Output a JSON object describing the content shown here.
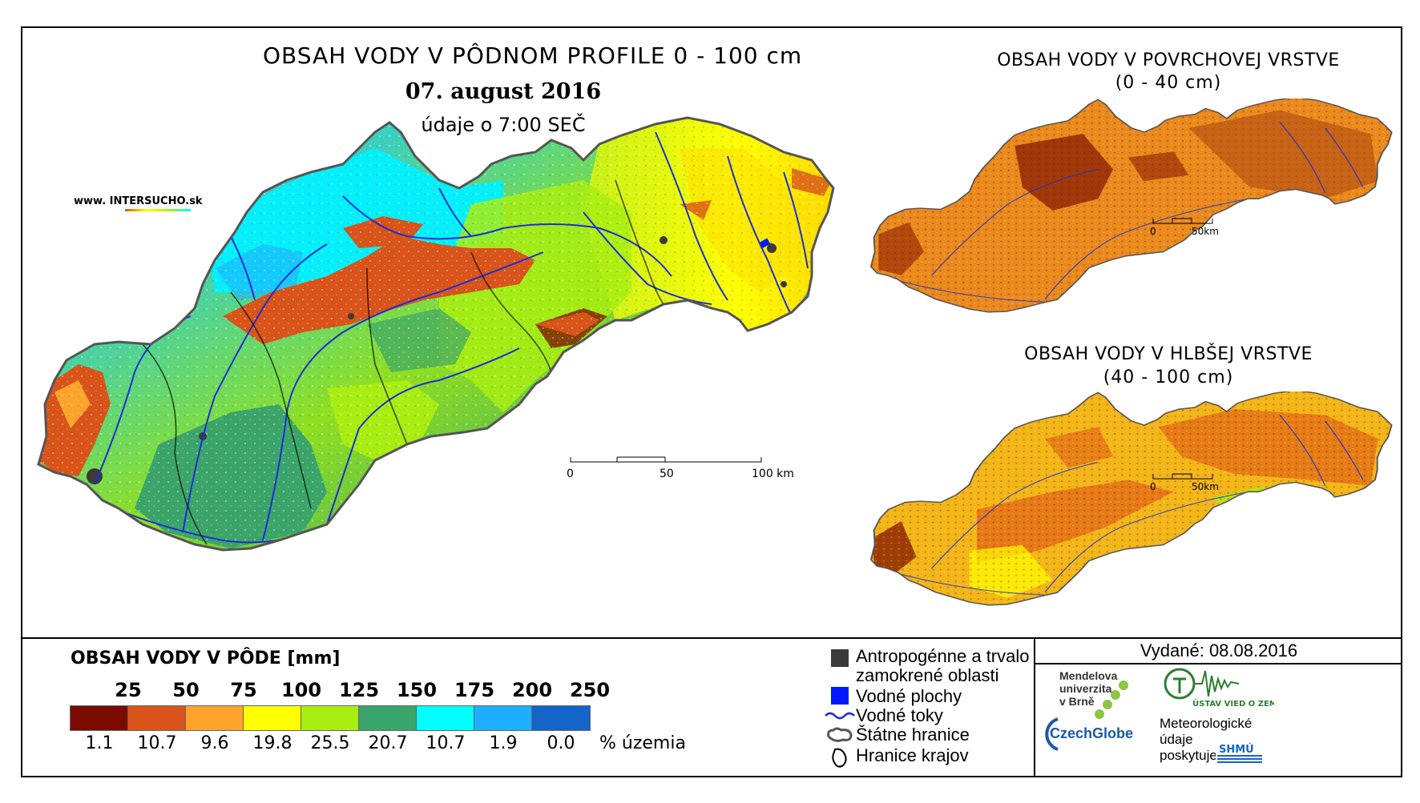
{
  "main_map": {
    "title": "OBSAH VODY V PÔDNOM PROFILE 0 - 100 cm",
    "date": "07. august 2016",
    "time": "údaje o 7:00 SEČ",
    "website": {
      "prefix": "www. INTER",
      "brand": "SUCHO",
      "suffix": ".sk"
    },
    "scale_bar": {
      "labels": [
        "0",
        "50",
        "100 km"
      ]
    }
  },
  "surface_map": {
    "title_line1": "OBSAH VODY V POVRCHOVEJ VRSTVE",
    "title_line2": "(0 - 40 cm)",
    "scale_bar": {
      "labels": [
        "0",
        "50km"
      ]
    }
  },
  "deep_map": {
    "title_line1": "OBSAH VODY V HLBŠEJ VRSTVE",
    "title_line2": "(40 - 100 cm)",
    "scale_bar": {
      "labels": [
        "0",
        "50km"
      ]
    }
  },
  "legend": {
    "title": "OBSAH VODY V PÔDE [mm]",
    "class_bounds": [
      "25",
      "50",
      "75",
      "100",
      "125",
      "150",
      "175",
      "200",
      "250"
    ],
    "class_colors": [
      "#7a0a00",
      "#d9531a",
      "#ffa42a",
      "#ffff00",
      "#a8ee12",
      "#3aa56a",
      "#00ffff",
      "#1eb0ff",
      "#1565c8"
    ],
    "percent_values": [
      "1.1",
      "10.7",
      "9.6",
      "19.8",
      "25.5",
      "20.7",
      "10.7",
      "1.9",
      "0.0"
    ],
    "percent_label": "% územia",
    "symbols": [
      {
        "icon": "dark-square-icon",
        "label_line1": "Antropogénne a trvalo",
        "label_line2": "zamokrené oblasti",
        "color": "#3a3a3a"
      },
      {
        "icon": "blue-square-icon",
        "label_line1": "Vodné plochy",
        "color": "#0018ff"
      },
      {
        "icon": "river-line-icon",
        "label_line1": "Vodné toky",
        "color": "#1a2fd6"
      },
      {
        "icon": "state-border-icon",
        "label_line1": "Štátne hranice"
      },
      {
        "icon": "region-border-icon",
        "label_line1": "Hranice krajov"
      }
    ]
  },
  "issuer": {
    "issued_label": "Vydané: 08.08.2016",
    "mendel_line1": "Mendelova",
    "mendel_line2": "univerzita",
    "mendel_line3": "v Brně",
    "czechglobe": "CzechGlobe",
    "uvgz_text": "ÚSTAV VIED O ZEMI",
    "meteo_line1": "Meteorologické",
    "meteo_line2": "údaje",
    "meteo_line3": "poskytuje:",
    "shmu_text": "SHMÚ"
  }
}
